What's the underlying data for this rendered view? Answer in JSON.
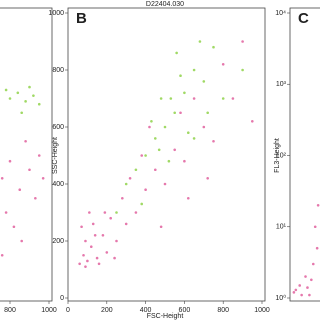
{
  "chart_data": [
    {
      "type": "scatter",
      "xlim": [
        0,
        1000
      ],
      "ylim": [
        0,
        1000
      ],
      "xticks": [
        800,
        1000
      ],
      "series": [
        {
          "color": "#e0609e",
          "x": [
            760,
            800,
            850,
            900,
            950,
            780,
            880,
            820,
            930,
            970,
            760,
            860
          ],
          "y": [
            420,
            480,
            380,
            450,
            500,
            300,
            550,
            250,
            350,
            420,
            150,
            200
          ]
        },
        {
          "color": "#8fd24a",
          "x": [
            800,
            840,
            880,
            920,
            860,
            950,
            780,
            900
          ],
          "y": [
            700,
            720,
            690,
            710,
            650,
            680,
            730,
            740
          ]
        }
      ]
    },
    {
      "type": "scatter",
      "panel_label": "B",
      "title": "D22404.030",
      "xlabel": "FSC-Height",
      "ylabel": "SSC-Height",
      "xlim": [
        0,
        1000
      ],
      "ylim": [
        0,
        1000
      ],
      "xticks": [
        0,
        200,
        400,
        600,
        800,
        1000
      ],
      "yticks": [
        0,
        200,
        400,
        600,
        800,
        1000
      ],
      "series": [
        {
          "color": "#e0609e",
          "x": [
            60,
            80,
            100,
            120,
            90,
            150,
            70,
            180,
            200,
            130,
            110,
            250,
            220,
            160,
            300,
            280,
            350,
            320,
            400,
            380,
            450,
            500,
            420,
            550,
            600,
            650,
            700,
            580,
            750,
            800,
            850,
            900,
            950,
            480,
            620,
            720,
            240,
            140,
            90,
            190
          ],
          "y": [
            120,
            150,
            130,
            180,
            200,
            140,
            250,
            220,
            160,
            260,
            300,
            200,
            280,
            120,
            260,
            350,
            300,
            420,
            380,
            500,
            450,
            400,
            600,
            520,
            480,
            700,
            600,
            650,
            550,
            820,
            700,
            900,
            620,
            250,
            350,
            420,
            140,
            220,
            110,
            300
          ]
        },
        {
          "color": "#8fd24a",
          "x": [
            300,
            350,
            400,
            450,
            500,
            550,
            480,
            600,
            650,
            700,
            620,
            520,
            380,
            430,
            560,
            750,
            800,
            680,
            720,
            250,
            580,
            470,
            530,
            650,
            900
          ],
          "y": [
            400,
            450,
            500,
            560,
            600,
            650,
            700,
            720,
            800,
            760,
            580,
            480,
            330,
            620,
            860,
            880,
            700,
            900,
            650,
            300,
            780,
            520,
            700,
            560,
            800
          ]
        }
      ]
    },
    {
      "type": "scatter",
      "panel_label": "C",
      "ylabel": "FL3-Height",
      "yscale": "log",
      "xlim": [
        0,
        1000
      ],
      "ylim": [
        1,
        10000
      ],
      "yticks": [
        {
          "value": 1,
          "label": "10⁰"
        },
        {
          "value": 10,
          "label": "10¹"
        },
        {
          "value": 100,
          "label": "10²"
        },
        {
          "value": 1000,
          "label": "10³"
        },
        {
          "value": 10000,
          "label": "10⁴"
        }
      ],
      "series": [
        {
          "color": "#e0609e",
          "x": [
            20,
            50,
            80,
            100,
            120,
            140,
            30,
            130,
            110,
            145,
            60,
            90
          ],
          "y": [
            1.2,
            1.5,
            2,
            1.1,
            3,
            5,
            1.3,
            10,
            1.8,
            20,
            1.1,
            1.4
          ]
        }
      ]
    }
  ]
}
